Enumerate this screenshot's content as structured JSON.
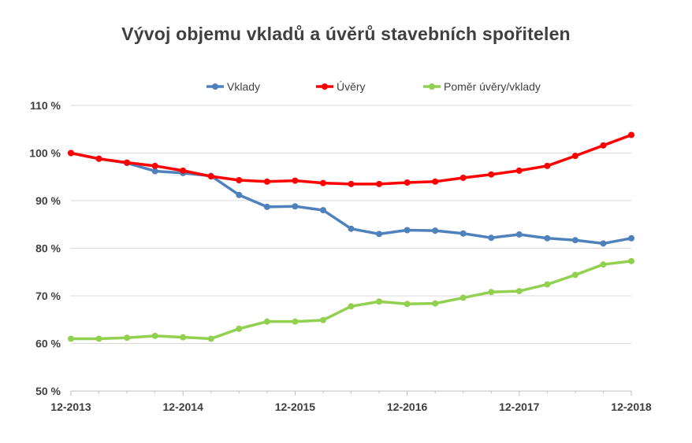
{
  "chart_data": {
    "type": "line",
    "title": "Vývoj objemu vkladů a úvěrů stavebních spořitelen",
    "xlabel": "",
    "ylabel": "",
    "ylim": [
      50,
      110
    ],
    "y_unit": "%",
    "yticks": [
      50,
      60,
      70,
      80,
      90,
      100,
      110
    ],
    "ytick_labels": [
      "50 %",
      "60 %",
      "70 %",
      "80 %",
      "90 %",
      "100 %",
      "110 %"
    ],
    "xtick_labels": [
      "12-2013",
      "12-2014",
      "12-2015",
      "12-2016",
      "12-2017",
      "12-2018"
    ],
    "x": [
      "12-2013",
      "03-2014",
      "06-2014",
      "09-2014",
      "12-2014",
      "03-2015",
      "06-2015",
      "09-2015",
      "12-2015",
      "03-2016",
      "06-2016",
      "09-2016",
      "12-2016",
      "03-2017",
      "06-2017",
      "09-2017",
      "12-2017",
      "03-2018",
      "06-2018",
      "09-2018",
      "12-2018"
    ],
    "grid": true,
    "legend_position": "top",
    "series": [
      {
        "name": "Vklady",
        "color": "#4f81bd",
        "values": [
          100.0,
          98.8,
          97.9,
          96.2,
          95.8,
          95.2,
          91.2,
          88.7,
          88.8,
          88.0,
          84.1,
          83.0,
          83.8,
          83.7,
          83.1,
          82.2,
          82.9,
          82.1,
          81.7,
          81.0,
          82.1
        ]
      },
      {
        "name": "Úvěry",
        "color": "#ff0000",
        "values": [
          100.0,
          98.8,
          98.0,
          97.3,
          96.3,
          95.1,
          94.3,
          94.0,
          94.2,
          93.7,
          93.5,
          93.5,
          93.8,
          94.0,
          94.8,
          95.5,
          96.3,
          97.3,
          99.4,
          101.6,
          103.8
        ]
      },
      {
        "name": "Poměr úvěry/vklady",
        "color": "#92d050",
        "values": [
          61.0,
          61.0,
          61.2,
          61.6,
          61.3,
          61.0,
          63.1,
          64.6,
          64.6,
          64.9,
          67.8,
          68.8,
          68.3,
          68.4,
          69.6,
          70.8,
          71.0,
          72.4,
          74.4,
          76.6,
          77.3
        ]
      }
    ]
  }
}
